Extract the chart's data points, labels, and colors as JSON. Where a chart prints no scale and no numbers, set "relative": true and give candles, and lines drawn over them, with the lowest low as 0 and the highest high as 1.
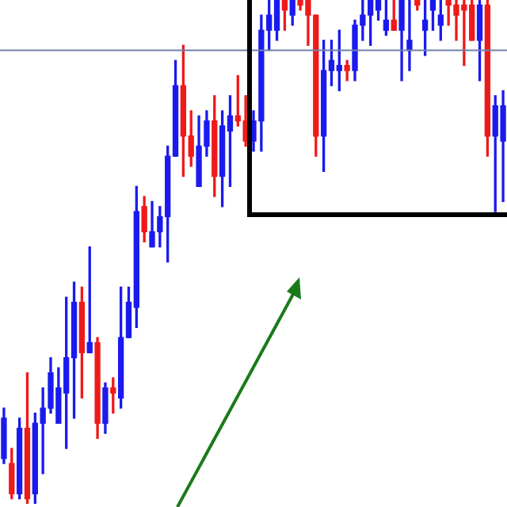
{
  "chart_data": {
    "type": "candlestick",
    "relative": true,
    "categories": [
      null,
      null,
      null,
      null,
      null,
      null,
      null,
      null,
      null,
      null,
      null,
      null,
      null,
      null,
      null,
      null,
      null,
      null,
      null,
      null,
      null,
      null,
      null,
      null,
      null,
      null,
      null,
      null,
      null,
      null,
      null,
      null,
      null,
      null,
      null,
      null,
      null,
      null,
      null,
      null,
      null,
      null,
      null,
      null,
      null,
      null,
      null,
      null,
      null,
      null,
      null,
      null,
      null,
      null,
      null,
      null,
      null,
      null,
      null,
      null,
      null,
      null,
      null,
      null,
      null
    ],
    "ohlc": [
      [
        0.09,
        0.19,
        0.08,
        0.17
      ],
      [
        0.08,
        0.11,
        0.01,
        0.02
      ],
      [
        0.02,
        0.17,
        0.01,
        0.15
      ],
      [
        0.15,
        0.26,
        0,
        0.01
      ],
      [
        0.02,
        0.18,
        0,
        0.16
      ],
      [
        0.16,
        0.23,
        0.06,
        0.19
      ],
      [
        0.19,
        0.29,
        0.18,
        0.26
      ],
      [
        0.16,
        0.27,
        0.16,
        0.23
      ],
      [
        0.22,
        0.41,
        0.11,
        0.29
      ],
      [
        0.29,
        0.44,
        0.17,
        0.4
      ],
      [
        0.4,
        0.43,
        0.21,
        0.3
      ],
      [
        0.3,
        0.51,
        0.3,
        0.32
      ],
      [
        0.32,
        0.33,
        0.13,
        0.16
      ],
      [
        0.16,
        0.24,
        0.14,
        0.23
      ],
      [
        0.23,
        0.25,
        0.18,
        0.22
      ],
      [
        0.21,
        0.43,
        0.19,
        0.33
      ],
      [
        0.33,
        0.43,
        0.33,
        0.4
      ],
      [
        0.39,
        0.63,
        0.35,
        0.58
      ],
      [
        0.59,
        0.61,
        0.52,
        0.54
      ],
      [
        0.51,
        0.6,
        0.51,
        0.54
      ],
      [
        0.54,
        0.59,
        0.51,
        0.57
      ],
      [
        0.57,
        0.71,
        0.48,
        0.69
      ],
      [
        0.69,
        0.88,
        0.69,
        0.83
      ],
      [
        0.83,
        0.91,
        0.65,
        0.73
      ],
      [
        0.73,
        0.78,
        0.67,
        0.69
      ],
      [
        0.63,
        0.77,
        0.63,
        0.71
      ],
      [
        0.71,
        0.78,
        0.69,
        0.76
      ],
      [
        0.76,
        0.81,
        0.61,
        0.65
      ],
      [
        0.65,
        0.78,
        0.59,
        0.75
      ],
      [
        0.74,
        0.81,
        0.63,
        0.77
      ],
      [
        0.77,
        0.85,
        0.75,
        0.76
      ],
      [
        0.76,
        0.81,
        0.71,
        0.72
      ],
      [
        0.72,
        0.78,
        0.7,
        0.76
      ],
      [
        0.76,
        0.97,
        0.7,
        0.94
      ],
      [
        0.94,
        1,
        0.9,
        0.97
      ],
      [
        0.94,
        1,
        0.92,
        1
      ],
      [
        1,
        1,
        0.94,
        0.98
      ],
      [
        0.97,
        1,
        0.95,
        1
      ],
      [
        1,
        1,
        0.98,
        0.99
      ],
      [
        1,
        1,
        0.91,
        0.97
      ],
      [
        0.97,
        0.97,
        0.69,
        0.73
      ],
      [
        0.73,
        0.92,
        0.66,
        0.86
      ],
      [
        0.86,
        0.92,
        0.83,
        0.88
      ],
      [
        0.86,
        0.94,
        0.82,
        0.87
      ],
      [
        0.87,
        0.88,
        0.84,
        0.86
      ],
      [
        0.86,
        0.96,
        0.84,
        0.95
      ],
      [
        0.95,
        1,
        0.92,
        0.97
      ],
      [
        0.97,
        1,
        0.91,
        1
      ],
      [
        0.98,
        1,
        0.96,
        1
      ],
      [
        0.94,
        1,
        0.93,
        0.96
      ],
      [
        0.96,
        1,
        0.94,
        0.94
      ],
      [
        0.94,
        1,
        0.84,
        1
      ],
      [
        0.9,
        1,
        0.86,
        0.92
      ],
      [
        1,
        1,
        0.98,
        0.99
      ],
      [
        0.94,
        1,
        0.89,
        0.96
      ],
      [
        0.98,
        1,
        0.94,
        1
      ],
      [
        0.95,
        1,
        0.92,
        0.97
      ],
      [
        1,
        1,
        0.95,
        0.99
      ],
      [
        0.99,
        1,
        0.92,
        0.97
      ],
      [
        0.99,
        1,
        0.87,
        0.98
      ],
      [
        0.99,
        1,
        0.92,
        0.92
      ],
      [
        0.92,
        1,
        0.84,
        0.99
      ],
      [
        0.99,
        1,
        0.69,
        0.73
      ],
      [
        0.73,
        0.81,
        0.58,
        0.79
      ],
      [
        0.72,
        0.82,
        0.6,
        0.79
      ]
    ],
    "colors": [
      "#1a1aee",
      "#ee1a1a",
      "#1a1aee",
      "#ee1a1a",
      "#1a1aee",
      "#1a1aee",
      "#1a1aee",
      "#1a1aee",
      "#1a1aee",
      "#1a1aee",
      "#ee1a1a",
      "#1a1aee",
      "#ee1a1a",
      "#1a1aee",
      "#ee1a1a",
      "#1a1aee",
      "#1a1aee",
      "#1a1aee",
      "#ee1a1a",
      "#1a1aee",
      "#1a1aee",
      "#1a1aee",
      "#1a1aee",
      "#ee1a1a",
      "#ee1a1a",
      "#1a1aee",
      "#1a1aee",
      "#ee1a1a",
      "#1a1aee",
      "#1a1aee",
      "#ee1a1a",
      "#ee1a1a",
      "#1a1aee",
      "#1a1aee",
      "#1a1aee",
      "#1a1aee",
      "#ee1a1a",
      "#1a1aee",
      "#ee1a1a",
      "#ee1a1a",
      "#ee1a1a",
      "#1a1aee",
      "#1a1aee",
      "#1a1aee",
      "#ee1a1a",
      "#1a1aee",
      "#1a1aee",
      "#1a1aee",
      "#1a1aee",
      "#1a1aee",
      "#ee1a1a",
      "#1a1aee",
      "#1a1aee",
      "#ee1a1a",
      "#1a1aee",
      "#1a1aee",
      "#1a1aee",
      "#ee1a1a",
      "#ee1a1a",
      "#ee1a1a",
      "#ee1a1a",
      "#1a1aee",
      "#ee1a1a",
      "#1a1aee",
      "#1a1aee"
    ],
    "ref_lines": [
      {
        "axis": "y",
        "value": 0.9,
        "color": "#7080a8"
      }
    ]
  }
}
